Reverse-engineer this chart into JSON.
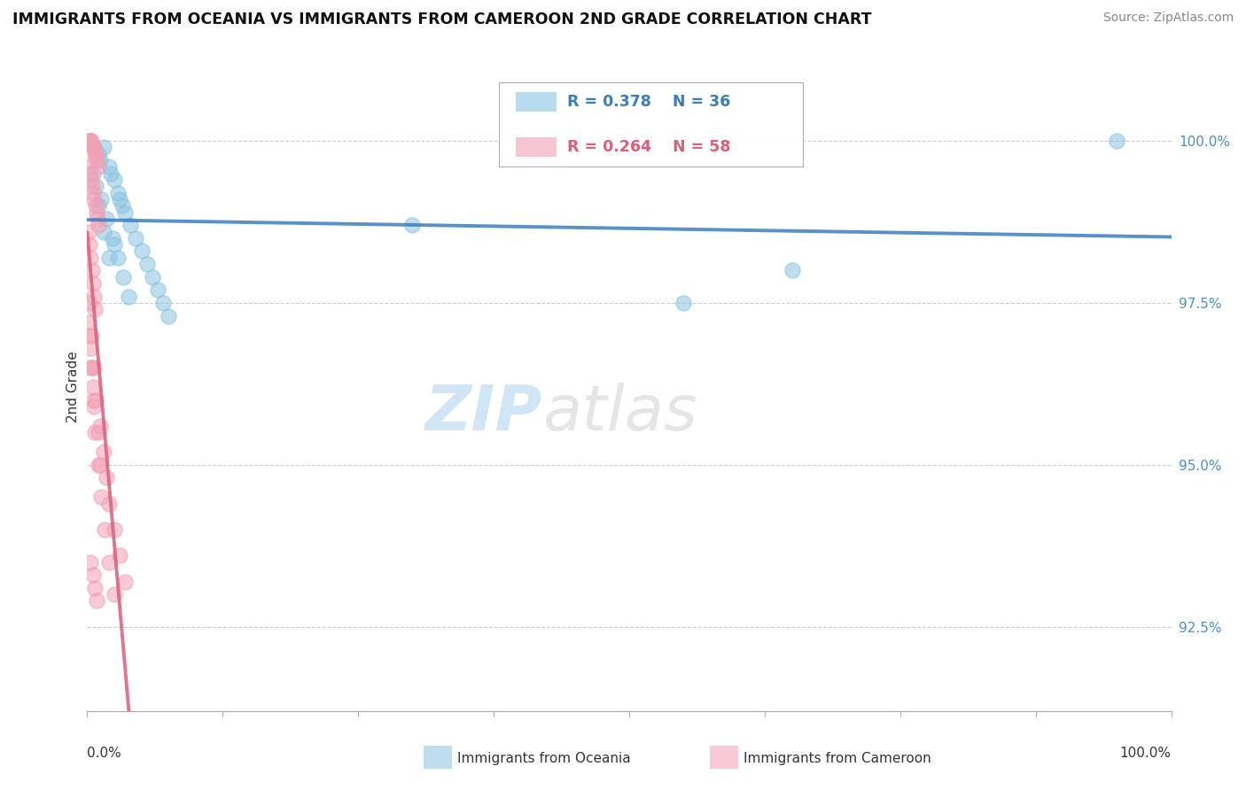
{
  "title": "IMMIGRANTS FROM OCEANIA VS IMMIGRANTS FROM CAMEROON 2ND GRADE CORRELATION CHART",
  "source": "Source: ZipAtlas.com",
  "ylabel": "2nd Grade",
  "ytick_values": [
    92.5,
    95.0,
    97.5,
    100.0
  ],
  "xmin": 0.0,
  "xmax": 100.0,
  "ymin": 91.2,
  "ymax": 101.2,
  "legend_blue_label": "Immigrants from Oceania",
  "legend_pink_label": "Immigrants from Cameroon",
  "r_blue": "0.378",
  "n_blue": "36",
  "r_pink": "0.264",
  "n_pink": "58",
  "blue_color": "#89c4e1",
  "pink_color": "#f4a0b5",
  "trendline_blue": "#3a7ebf",
  "trendline_pink": "#d95f7a",
  "watermark_zip": "ZIP",
  "watermark_atlas": "atlas",
  "blue_points_x": [
    0.3,
    0.5,
    1.0,
    1.2,
    1.5,
    2.0,
    2.2,
    2.5,
    2.8,
    3.0,
    3.2,
    3.5,
    4.0,
    4.5,
    5.0,
    5.5,
    6.0,
    6.5,
    7.0,
    7.5,
    0.8,
    1.3,
    1.8,
    2.3,
    2.8,
    3.3,
    3.8,
    0.5,
    1.0,
    1.5,
    2.0,
    30.0,
    55.0,
    95.0,
    65.0,
    2.5
  ],
  "blue_points_y": [
    100.0,
    99.9,
    99.8,
    99.7,
    99.9,
    99.6,
    99.5,
    99.4,
    99.2,
    99.1,
    99.0,
    98.9,
    98.7,
    98.5,
    98.3,
    98.1,
    97.9,
    97.7,
    97.5,
    97.3,
    99.3,
    99.1,
    98.8,
    98.5,
    98.2,
    97.9,
    97.6,
    99.5,
    99.0,
    98.6,
    98.2,
    98.7,
    97.5,
    100.0,
    98.0,
    98.4
  ],
  "pink_points_x": [
    0.1,
    0.2,
    0.3,
    0.4,
    0.5,
    0.6,
    0.7,
    0.8,
    0.9,
    1.0,
    0.15,
    0.25,
    0.35,
    0.45,
    0.55,
    0.65,
    0.75,
    0.85,
    0.95,
    1.05,
    0.12,
    0.22,
    0.32,
    0.42,
    0.52,
    0.62,
    0.72,
    0.1,
    0.2,
    0.3,
    0.4,
    0.5,
    0.6,
    1.2,
    1.5,
    1.8,
    2.0,
    2.5,
    3.0,
    3.5,
    0.3,
    0.5,
    0.7,
    1.0,
    1.3,
    1.6,
    2.0,
    2.5,
    0.2,
    0.4,
    0.6,
    0.8,
    1.0,
    1.2,
    0.3,
    0.5,
    0.7,
    0.9
  ],
  "pink_points_y": [
    100.0,
    100.0,
    100.0,
    100.0,
    99.9,
    99.9,
    99.8,
    99.8,
    99.7,
    99.6,
    99.6,
    99.5,
    99.4,
    99.3,
    99.2,
    99.1,
    99.0,
    98.9,
    98.8,
    98.7,
    98.6,
    98.4,
    98.2,
    98.0,
    97.8,
    97.6,
    97.4,
    97.2,
    97.0,
    96.8,
    96.5,
    96.2,
    95.9,
    95.6,
    95.2,
    94.8,
    94.4,
    94.0,
    93.6,
    93.2,
    96.5,
    96.0,
    95.5,
    95.0,
    94.5,
    94.0,
    93.5,
    93.0,
    97.5,
    97.0,
    96.5,
    96.0,
    95.5,
    95.0,
    93.5,
    93.3,
    93.1,
    92.9
  ]
}
